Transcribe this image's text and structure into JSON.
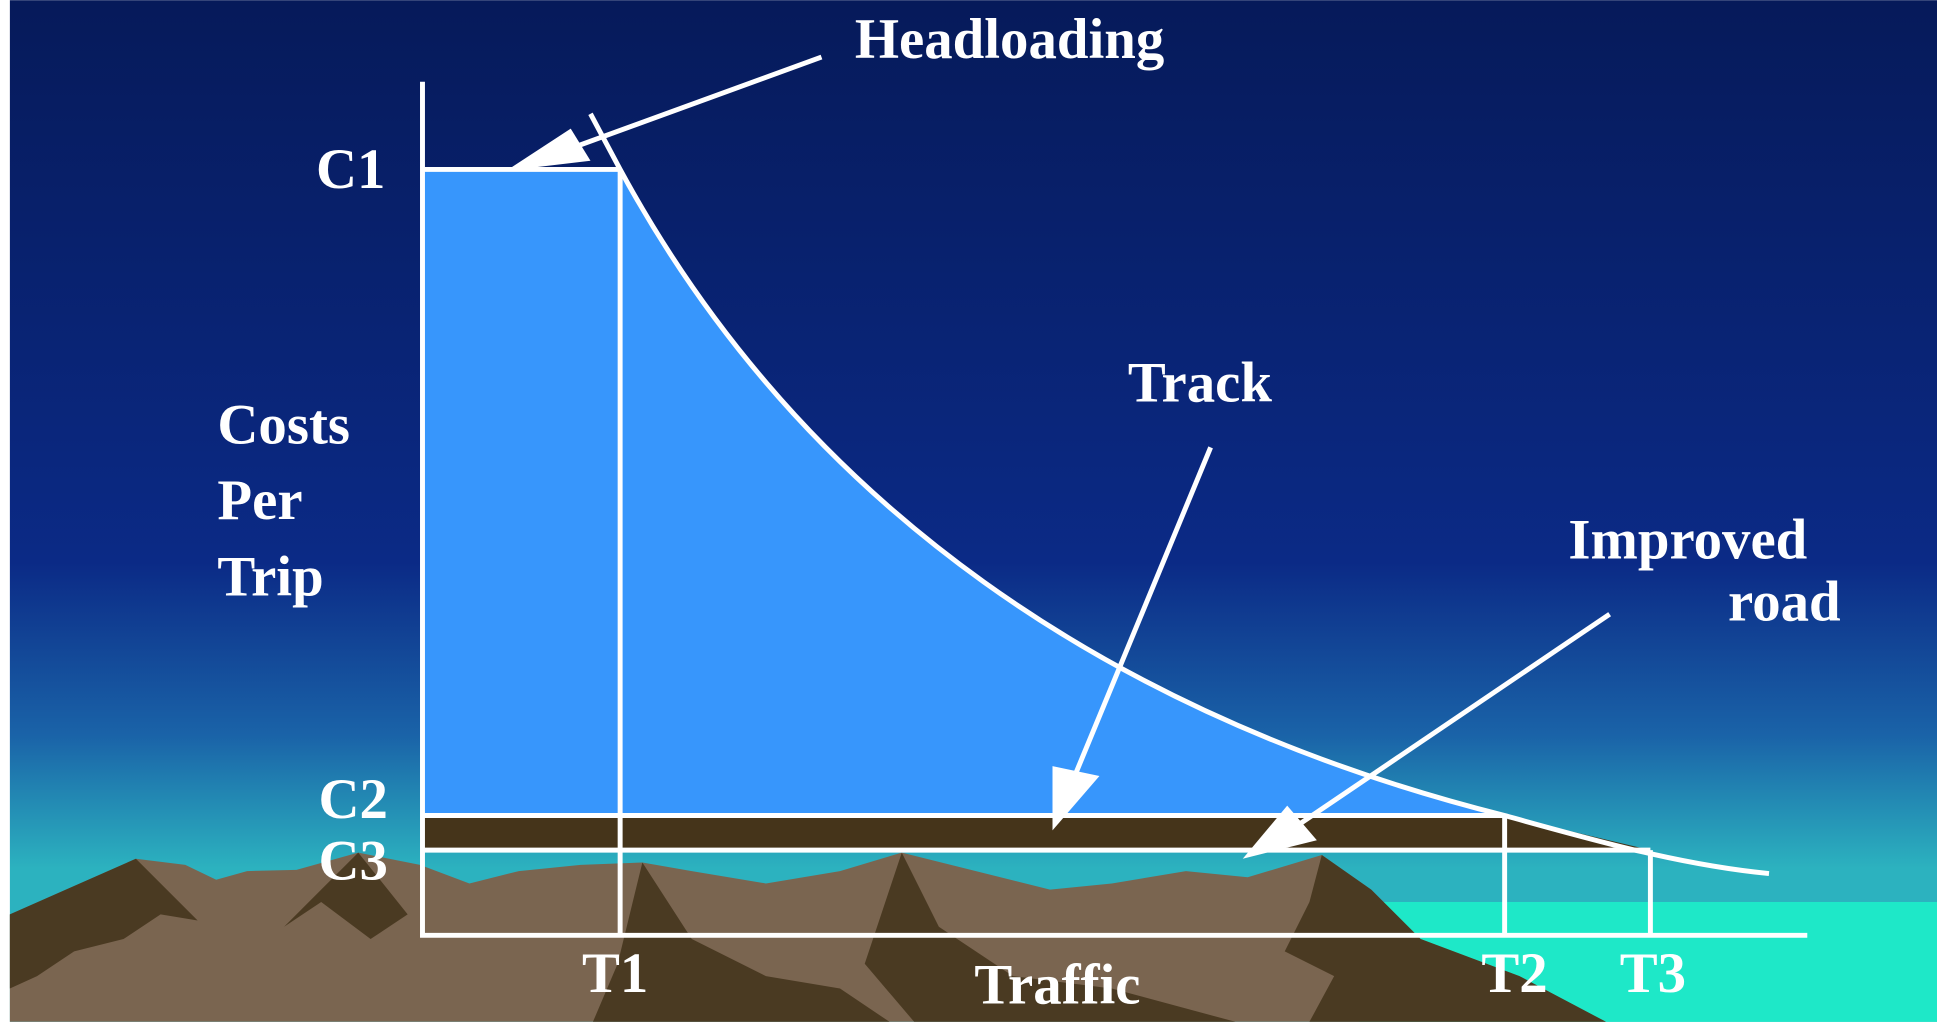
{
  "labels": {
    "headloading": "Headloading",
    "track": "Track",
    "improved_road": [
      "Improved",
      "road"
    ],
    "y_axis": [
      "Costs",
      "Per",
      "Trip"
    ],
    "x_axis": "Traffic",
    "cost_levels": [
      "C1",
      "C2",
      "C3"
    ],
    "traffic_levels": [
      "T1",
      "T2",
      "T3"
    ]
  }
}
